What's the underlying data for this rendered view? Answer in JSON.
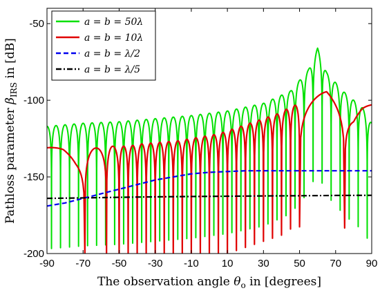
{
  "chart_data": {
    "type": "line",
    "title": "",
    "xlabel": "The observation angle θo in [degrees]",
    "xlabel_parts": {
      "pre": "The observation angle ",
      "sym": "θ",
      "sub": "o",
      "post": " in [degrees]"
    },
    "ylabel": "Pathloss parameter βIRS in [dB]",
    "ylabel_parts": {
      "pre": "Pathloss parameter ",
      "sym": "β",
      "sub": "IRS",
      "post": " in [dB]"
    },
    "xlim": [
      -90,
      90
    ],
    "ylim": [
      -200,
      -40
    ],
    "xticks": [
      -90,
      -70,
      -50,
      -30,
      -10,
      10,
      30,
      50,
      70,
      90
    ],
    "yticks": [
      -50,
      -100,
      -150,
      -200
    ],
    "grid": false,
    "legend_position": "top-left",
    "series": [
      {
        "name": "a = b = 50λ",
        "color": "#00e000",
        "style": "solid",
        "envelope": [
          [
            -90,
            -117
          ],
          [
            -80,
            -116
          ],
          [
            -70,
            -115
          ],
          [
            -50,
            -114
          ],
          [
            -30,
            -112
          ],
          [
            -10,
            -110
          ],
          [
            10,
            -107
          ],
          [
            30,
            -102
          ],
          [
            45,
            -94
          ],
          [
            55,
            -80
          ],
          [
            60,
            -66
          ],
          [
            65,
            -82
          ],
          [
            75,
            -95
          ],
          [
            85,
            -105
          ],
          [
            90,
            -115
          ]
        ],
        "lobe_spacing_deg": 5,
        "null_depth_db": -200
      },
      {
        "name": "a = b = 10λ",
        "color": "#e00000",
        "style": "solid",
        "lobe_peaks": [
          [
            -90,
            -131
          ],
          [
            -81,
            -130
          ],
          [
            -74,
            -133
          ],
          [
            -62,
            -131
          ],
          [
            -55,
            -130
          ],
          [
            -50,
            -130
          ],
          [
            -45,
            -130
          ],
          [
            -40,
            -129
          ],
          [
            -35,
            -128
          ],
          [
            -30,
            -128
          ],
          [
            -25,
            -127
          ],
          [
            -20,
            -127
          ],
          [
            -15,
            -126
          ],
          [
            -10,
            -125
          ],
          [
            -5,
            -124
          ],
          [
            0,
            -123
          ],
          [
            5,
            -122
          ],
          [
            10,
            -120
          ],
          [
            15,
            -118
          ],
          [
            20,
            -116
          ],
          [
            25,
            -114
          ],
          [
            30,
            -112
          ],
          [
            35,
            -110
          ],
          [
            40,
            -108
          ],
          [
            45,
            -104
          ],
          [
            52,
            -102
          ],
          [
            65,
            -94
          ],
          [
            80,
            -108
          ],
          [
            85,
            -104
          ],
          [
            90,
            -103
          ]
        ],
        "nulls": [
          -69,
          -57,
          -50,
          -45,
          -40,
          -35,
          -30,
          -25,
          -20,
          -15,
          -10,
          -5,
          0,
          5,
          10,
          15,
          20,
          25,
          30,
          35,
          40,
          45,
          50,
          75
        ],
        "null_depth_db": -200
      },
      {
        "name": "a = b = λ/2",
        "color": "#0000ee",
        "style": "dashed",
        "points": [
          [
            -90,
            -169
          ],
          [
            -80,
            -167
          ],
          [
            -70,
            -164
          ],
          [
            -60,
            -161
          ],
          [
            -50,
            -158
          ],
          [
            -40,
            -155
          ],
          [
            -30,
            -152
          ],
          [
            -20,
            -150
          ],
          [
            -10,
            -148
          ],
          [
            0,
            -147
          ],
          [
            10,
            -146.5
          ],
          [
            20,
            -146
          ],
          [
            30,
            -146
          ],
          [
            50,
            -146
          ],
          [
            70,
            -146
          ],
          [
            90,
            -146
          ]
        ]
      },
      {
        "name": "a = b = λ/5",
        "color": "#000000",
        "style": "dashdot",
        "points": [
          [
            -90,
            -164
          ],
          [
            -70,
            -163.7
          ],
          [
            -50,
            -163.3
          ],
          [
            -30,
            -163
          ],
          [
            -10,
            -162.8
          ],
          [
            10,
            -162.6
          ],
          [
            30,
            -162.4
          ],
          [
            50,
            -162.3
          ],
          [
            70,
            -162.1
          ],
          [
            90,
            -162
          ]
        ]
      }
    ]
  }
}
